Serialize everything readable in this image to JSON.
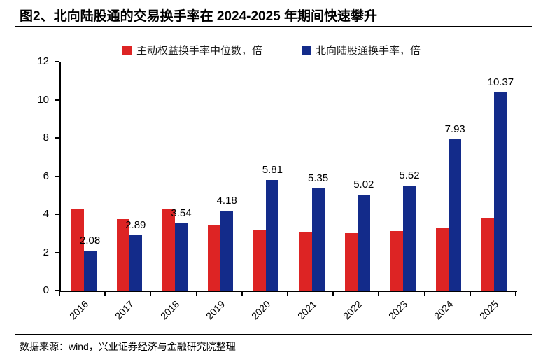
{
  "header": {
    "title": "图2、北向陆股通的交易换手率在 2024-2025 年期间快速攀升"
  },
  "legend": [
    {
      "label": "主动权益换手率中位数，倍",
      "color": "#dd2424"
    },
    {
      "label": "北向陆股通换手率，倍",
      "color": "#132b8a"
    }
  ],
  "chart_data": {
    "type": "bar",
    "title": "图2、北向陆股通的交易换手率在 2024-2025 年期间快速攀升",
    "categories": [
      "2016",
      "2017",
      "2018",
      "2019",
      "2020",
      "2021",
      "2022",
      "2023",
      "2024",
      "2025"
    ],
    "series": [
      {
        "name": "主动权益换手率中位数，倍",
        "color": "#dd2424",
        "values": [
          4.3,
          3.75,
          4.26,
          3.42,
          3.2,
          3.08,
          3.0,
          3.12,
          3.32,
          3.8
        ],
        "value_labels_shown": false
      },
      {
        "name": "北向陆股通换手率，倍",
        "color": "#132b8a",
        "values": [
          2.08,
          2.89,
          3.54,
          4.18,
          5.81,
          5.35,
          5.02,
          5.52,
          7.93,
          10.37
        ],
        "value_labels_shown": true
      }
    ],
    "xlabel": "",
    "ylabel": "",
    "ylim": [
      0,
      12
    ],
    "ytick_step": 2,
    "yticks": [
      0,
      2,
      4,
      6,
      8,
      10,
      12
    ],
    "grid": false,
    "legend_position": "top",
    "x_label_rotation_deg": 45
  },
  "footer": {
    "source": "数据来源：wind，兴业证券经济与金融研究院整理"
  }
}
